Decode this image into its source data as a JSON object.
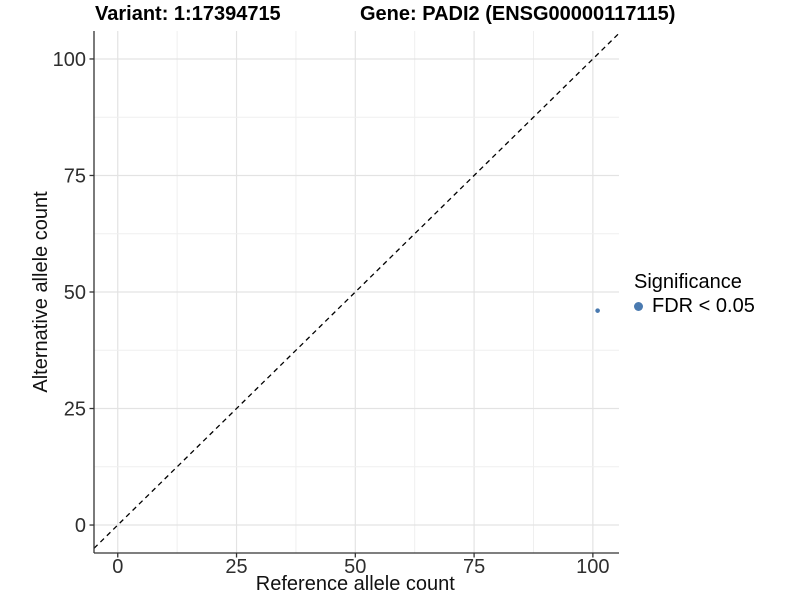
{
  "page": {
    "background": "#ffffff"
  },
  "chart_data": {
    "type": "scatter",
    "titles": {
      "left": "Variant: 1:17394715",
      "right": "Gene: PADI2 (ENSG00000117115)"
    },
    "xlabel": "Reference allele count",
    "ylabel": "Alternative allele count",
    "xlim": [
      -5,
      105.5
    ],
    "ylim": [
      -6,
      106
    ],
    "xticks": [
      0,
      25,
      50,
      75,
      100
    ],
    "yticks": [
      0,
      25,
      50,
      75,
      100
    ],
    "minor_grid_step": 12.5,
    "grid": true,
    "identity_line": {
      "style": "dashed",
      "color": "#000000",
      "from": -5,
      "to": 106
    },
    "points": [
      {
        "x": 101,
        "y": 46,
        "series": "FDR < 0.05"
      }
    ],
    "point_radius": 2.3,
    "legend": {
      "position": "right",
      "title": "Significance",
      "entries": [
        {
          "label": "FDR < 0.05",
          "color": "#4a7ab0"
        }
      ]
    },
    "colors": {
      "point": "#4a7ab0",
      "axis_line": "#333333",
      "grid_major": "#e3e3e3",
      "grid_minor": "#efefef",
      "tick_label": "#2e2e2e",
      "axis_title": "#111111"
    }
  }
}
